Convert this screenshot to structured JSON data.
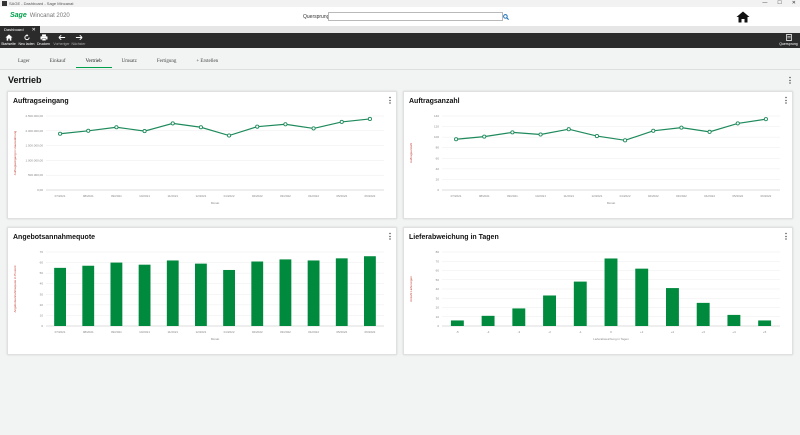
{
  "window": {
    "title": "SAGE - Dashboard - Sage Mincanat",
    "controls": [
      "—",
      "☐",
      "✕"
    ]
  },
  "header": {
    "brand_sage": "Sage",
    "brand_product": "Wincanat 2020",
    "quick_label": "Quersprung",
    "quick_value": "",
    "quick_placeholder": ""
  },
  "doc_tab": {
    "label": "Dashboard",
    "close": "✕"
  },
  "toolbar": {
    "start": "Startseite",
    "reload": "Neu laden",
    "print": "Drucken",
    "back": "Vorheriger",
    "forward": "Nächster",
    "quersprung": "Quersprung"
  },
  "nav": {
    "tabs": [
      {
        "label": "Lager"
      },
      {
        "label": "Einkauf"
      },
      {
        "label": "Vertrieb",
        "active": true
      },
      {
        "label": "Umsatz"
      },
      {
        "label": "Fertigung"
      },
      {
        "label": "+ Erstellen"
      }
    ]
  },
  "section": {
    "title": "Vertrieb",
    "menu": "⋮"
  },
  "cards": [
    {
      "title": "Auftragseingang",
      "menu": "⋮"
    },
    {
      "title": "Auftragsanzahl",
      "menu": "⋮"
    },
    {
      "title": "Angebotsannahmequote",
      "menu": "⋮"
    },
    {
      "title": "Lieferabweichung in Tagen",
      "menu": "⋮"
    }
  ],
  "chart_data": [
    {
      "type": "line",
      "x": [
        "07/2021",
        "08/2021",
        "09/2021",
        "10/2021",
        "11/2021",
        "12/2021",
        "01/2022",
        "02/2022",
        "03/2022",
        "04/2022",
        "05/2022",
        "06/2022"
      ],
      "values": [
        1900000,
        2000000,
        2120000,
        1990000,
        2250000,
        2120000,
        1840000,
        2140000,
        2220000,
        2080000,
        2300000,
        2400000
      ],
      "yticks": [
        "0,00",
        "500.000,00",
        "1.000.000,00",
        "1.500.000,00",
        "2.000.000,00",
        "2.500.000,00"
      ],
      "ylim": [
        0,
        2500000
      ],
      "xlabel": "Monat",
      "ylabel": "Auftragseingang in Hauswährung",
      "color": "#1e8a5c"
    },
    {
      "type": "line",
      "x": [
        "07/2021",
        "08/2021",
        "09/2021",
        "10/2021",
        "11/2021",
        "12/2021",
        "01/2022",
        "02/2022",
        "03/2022",
        "04/2022",
        "05/2022",
        "06/2022"
      ],
      "values": [
        96,
        101,
        109,
        105,
        115,
        102,
        94,
        112,
        118,
        110,
        126,
        134
      ],
      "yticks": [
        "0",
        "20",
        "40",
        "60",
        "80",
        "100",
        "120",
        "140"
      ],
      "ylim": [
        0,
        140
      ],
      "xlabel": "Monat",
      "ylabel": "Auftragsanzahl",
      "color": "#1e8a5c"
    },
    {
      "type": "bar",
      "categories": [
        "07/2021",
        "08/2021",
        "09/2021",
        "10/2021",
        "11/2021",
        "12/2021",
        "01/2022",
        "02/2022",
        "03/2022",
        "04/2022",
        "05/2022",
        "06/2022"
      ],
      "values": [
        55,
        57,
        60,
        58,
        62,
        59,
        53,
        61,
        63,
        62,
        64,
        66
      ],
      "yticks": [
        "0",
        "10",
        "20",
        "30",
        "40",
        "50",
        "60",
        "70"
      ],
      "ylim": [
        0,
        70
      ],
      "xlabel": "Monat",
      "ylabel": "Angebotsannahmequote in Prozent",
      "color": "#008a3e"
    },
    {
      "type": "bar",
      "categories": [
        "-5",
        "-4",
        "-3",
        "-2",
        "-1",
        "0",
        "+1",
        "+2",
        "+3",
        "+4",
        "+5"
      ],
      "values": [
        6,
        11,
        19,
        33,
        48,
        73,
        62,
        41,
        25,
        12,
        6
      ],
      "yticks": [
        "0",
        "10",
        "20",
        "30",
        "40",
        "50",
        "60",
        "70",
        "80"
      ],
      "ylim": [
        0,
        80
      ],
      "xlabel": "Lieferabweichung in Tagen",
      "ylabel": "Anzahl Lieferungen",
      "color": "#008a3e"
    }
  ]
}
